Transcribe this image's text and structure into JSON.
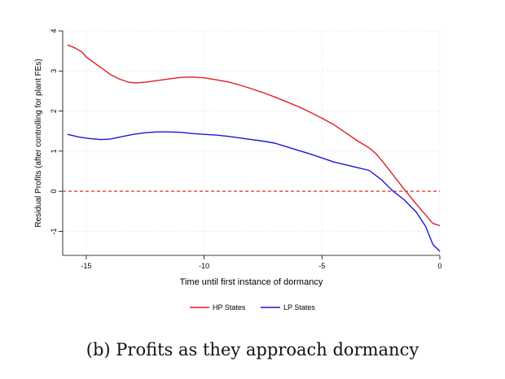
{
  "caption": "(b) Profits as they approach dormancy",
  "chart_data": {
    "type": "line",
    "xlabel": "Time until first instance of dormancy",
    "ylabel": "Residual Profits (after controlling for plant FEs)",
    "xlim": [
      -16,
      0
    ],
    "ylim": [
      -1.6,
      4
    ],
    "xticks": [
      -15,
      -10,
      -5,
      0
    ],
    "yticks": [
      -1,
      0,
      1,
      2,
      3,
      4
    ],
    "grid": true,
    "reference_line": {
      "y": 0,
      "color": "#e03030",
      "style": "dashed"
    },
    "legend_position": "bottom-center",
    "series": [
      {
        "name": "HP States",
        "color": "#e02020",
        "x": [
          -15.8,
          -15.5,
          -15.2,
          -15.0,
          -14.7,
          -14.3,
          -14.0,
          -13.6,
          -13.2,
          -12.9,
          -12.5,
          -12.0,
          -11.5,
          -11.0,
          -10.5,
          -10.0,
          -9.5,
          -9.0,
          -8.5,
          -8.0,
          -7.5,
          -7.0,
          -6.5,
          -6.0,
          -5.5,
          -5.0,
          -4.5,
          -4.0,
          -3.5,
          -3.0,
          -2.7,
          -2.4,
          -2.0,
          -1.5,
          -1.0,
          -0.5,
          -0.3,
          0.0
        ],
        "y": [
          3.65,
          3.58,
          3.48,
          3.35,
          3.22,
          3.05,
          2.92,
          2.8,
          2.72,
          2.7,
          2.72,
          2.76,
          2.8,
          2.84,
          2.85,
          2.83,
          2.78,
          2.73,
          2.65,
          2.56,
          2.46,
          2.35,
          2.23,
          2.11,
          1.97,
          1.82,
          1.66,
          1.46,
          1.26,
          1.08,
          0.93,
          0.72,
          0.42,
          0.04,
          -0.32,
          -0.66,
          -0.8,
          -0.86
        ]
      },
      {
        "name": "LP States",
        "color": "#1818d8",
        "x": [
          -15.8,
          -15.3,
          -14.8,
          -14.4,
          -14.0,
          -13.5,
          -13.0,
          -12.5,
          -12.0,
          -11.5,
          -11.0,
          -10.5,
          -10.0,
          -9.5,
          -9.0,
          -8.5,
          -8.0,
          -7.5,
          -7.0,
          -6.5,
          -6.0,
          -5.5,
          -5.0,
          -4.5,
          -4.0,
          -3.5,
          -3.0,
          -2.5,
          -2.0,
          -1.5,
          -1.0,
          -0.6,
          -0.3,
          0.0
        ],
        "y": [
          1.42,
          1.35,
          1.31,
          1.29,
          1.3,
          1.36,
          1.42,
          1.46,
          1.48,
          1.48,
          1.47,
          1.44,
          1.42,
          1.4,
          1.37,
          1.33,
          1.29,
          1.25,
          1.2,
          1.11,
          1.02,
          0.93,
          0.83,
          0.73,
          0.66,
          0.59,
          0.52,
          0.3,
          0.01,
          -0.22,
          -0.52,
          -0.88,
          -1.32,
          -1.5
        ]
      }
    ]
  }
}
